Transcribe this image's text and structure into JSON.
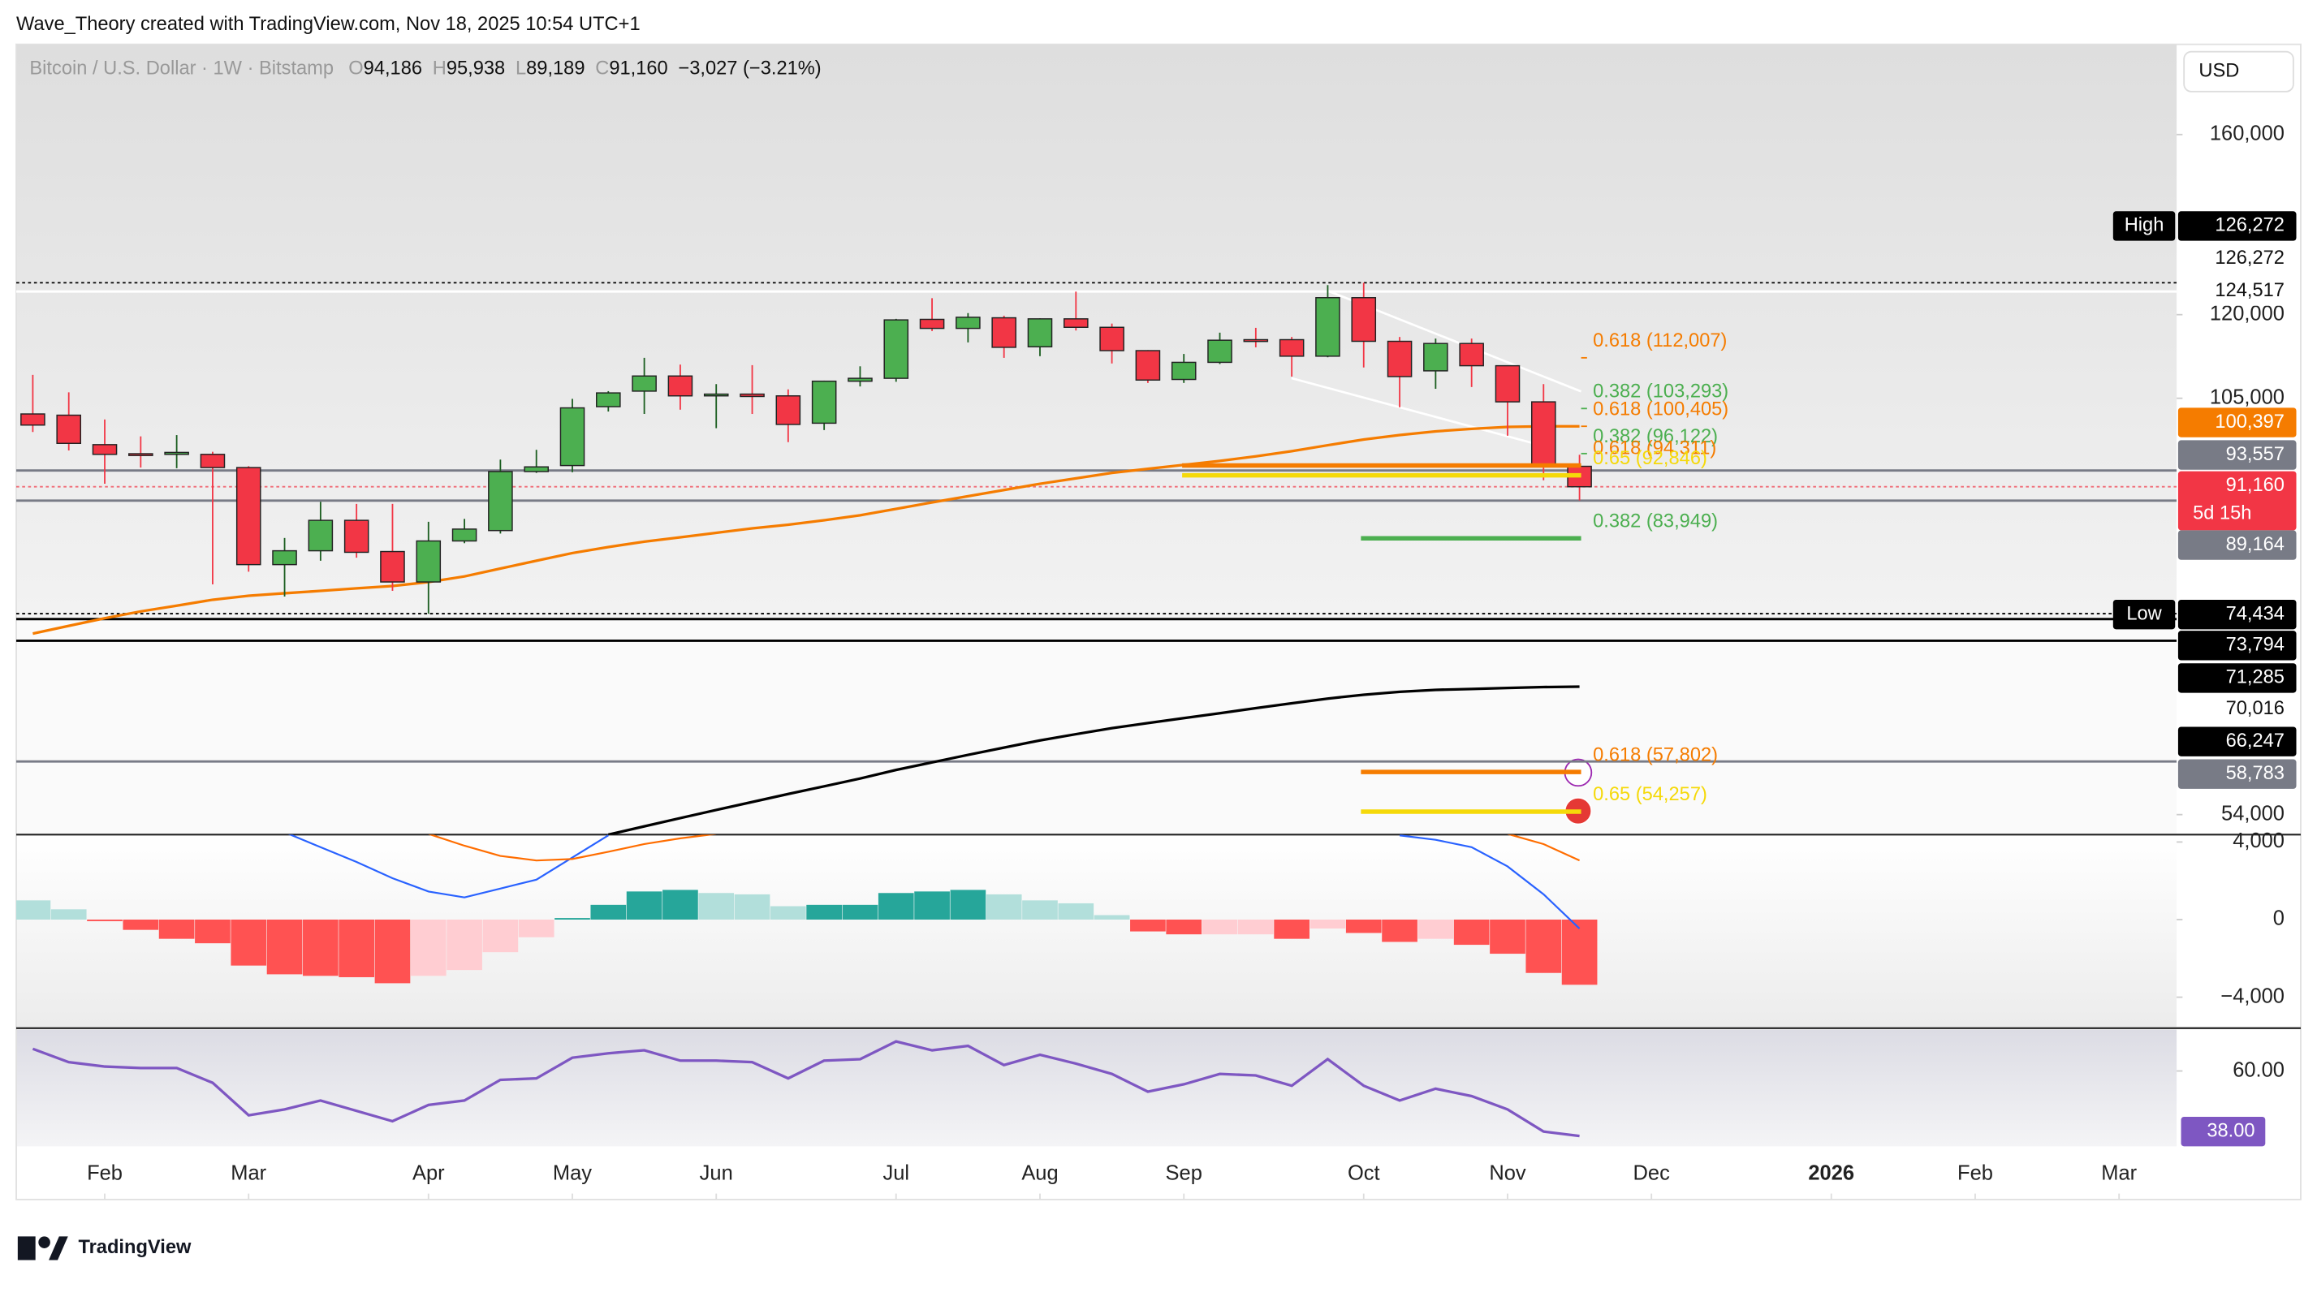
{
  "header": {
    "credit": "Wave_Theory created with TradingView.com, Nov 18, 2025 10:54 UTC+1"
  },
  "legend": {
    "symbol": "Bitcoin / U.S. Dollar · 1W · Bitstamp",
    "fields": [
      {
        "key": "O",
        "value": "94,186"
      },
      {
        "key": "H",
        "value": "95,938"
      },
      {
        "key": "L",
        "value": "89,189"
      },
      {
        "key": "C",
        "value": "91,160"
      }
    ],
    "change": "−3,027 (−3.21%)"
  },
  "currency": "USD",
  "footer": {
    "logo": "TradingView"
  },
  "chart_data": [
    {
      "type": "candlestick",
      "log_scale": true,
      "up_color": "#4caf50",
      "down_color": "#f23645",
      "open": [
        102400,
        102200,
        97500,
        96100,
        96000,
        96000,
        94000,
        80500,
        82300,
        86400,
        82200,
        78300,
        83600,
        85000,
        93400,
        94300,
        103600,
        106200,
        108800,
        105600,
        105700,
        105400,
        100900,
        107900,
        108400,
        119100,
        117400,
        119400,
        114000,
        119200,
        117600,
        113300,
        108200,
        111200,
        115300,
        115300,
        112300,
        123300,
        115000,
        109700,
        114600,
        110600,
        104400,
        94186
      ],
      "high": [
        109000,
        106000,
        101500,
        98800,
        99000,
        96400,
        94200,
        84000,
        89000,
        88700,
        88700,
        86200,
        86600,
        95200,
        96700,
        104900,
        106200,
        112000,
        110800,
        107400,
        110700,
        106500,
        108000,
        110500,
        119200,
        123200,
        120300,
        119800,
        119300,
        124500,
        118300,
        113400,
        112700,
        116600,
        117500,
        115800,
        125800,
        126272,
        115800,
        115500,
        115500,
        110600,
        107400,
        95938
      ],
      "low": [
        99500,
        96600,
        91600,
        94000,
        93900,
        78000,
        79600,
        76500,
        81000,
        81400,
        77200,
        74434,
        83300,
        84600,
        93200,
        93300,
        102800,
        102400,
        103100,
        100100,
        102400,
        97900,
        99800,
        107000,
        107800,
        116900,
        114800,
        112000,
        112300,
        117000,
        111000,
        107600,
        107600,
        110900,
        113900,
        108700,
        112100,
        110300,
        103500,
        106600,
        106900,
        98900,
        92100,
        89189
      ],
      "close": [
        100600,
        97700,
        96000,
        95900,
        96300,
        94000,
        80500,
        82300,
        86400,
        82100,
        78300,
        83600,
        85200,
        93400,
        94100,
        103400,
        105900,
        108800,
        105400,
        105700,
        105300,
        100700,
        107900,
        108400,
        119000,
        117400,
        119500,
        113900,
        119200,
        117600,
        113300,
        108100,
        111200,
        115200,
        115100,
        112300,
        123300,
        115000,
        108700,
        114600,
        110600,
        104400,
        94300,
        91160
      ],
      "series": [
        {
          "color": "#f57c00",
          "values": [
            72100,
            73000,
            73900,
            74700,
            75400,
            76100,
            76600,
            76900,
            77200,
            77500,
            77800,
            78300,
            79000,
            80000,
            81000,
            82000,
            82800,
            83500,
            84100,
            84700,
            85300,
            85800,
            86400,
            87100,
            88000,
            88900,
            89800,
            90700,
            91600,
            92400,
            93200,
            93800,
            94400,
            95000,
            95700,
            96500,
            97400,
            98300,
            99000,
            99600,
            100000,
            100300,
            100400,
            100397
          ]
        },
        {
          "color": "#000000",
          "values": [
            null,
            null,
            null,
            null,
            null,
            null,
            null,
            null,
            null,
            null,
            null,
            null,
            null,
            null,
            null,
            null,
            52300,
            53000,
            53700,
            54400,
            55100,
            55800,
            56500,
            57200,
            58000,
            58700,
            59400,
            60100,
            60800,
            61400,
            62000,
            62500,
            63000,
            63500,
            64000,
            64500,
            65000,
            65400,
            65700,
            65900,
            66000,
            66100,
            66200,
            66247
          ]
        }
      ],
      "ylim": [
        52300,
        184800
      ],
      "yticks": [
        {
          "value": 160000,
          "label": "160,000"
        },
        {
          "value": 120000,
          "label": "120,000"
        },
        {
          "value": 105000,
          "label": "105,000"
        },
        {
          "value": 54000,
          "label": "54,000"
        }
      ],
      "xlim": [
        -0.46,
        59.6
      ],
      "xticks": [
        {
          "value": 2,
          "label": "Feb"
        },
        {
          "value": 6,
          "label": "Mar"
        },
        {
          "value": 11,
          "label": "Apr"
        },
        {
          "value": 15,
          "label": "May"
        },
        {
          "value": 19,
          "label": "Jun"
        },
        {
          "value": 24,
          "label": "Jul"
        },
        {
          "value": 28,
          "label": "Aug"
        },
        {
          "value": 32,
          "label": "Sep"
        },
        {
          "value": 37,
          "label": "Oct"
        },
        {
          "value": 41,
          "label": "Nov"
        },
        {
          "value": 45,
          "label": "Dec"
        },
        {
          "value": 50,
          "label": "2026"
        },
        {
          "value": 54,
          "label": "Feb"
        },
        {
          "value": 58,
          "label": "Mar"
        }
      ],
      "price_labels": [
        {
          "tag": "High",
          "value": 126272,
          "label": "126,272",
          "color": "#000000",
          "line": "dotted"
        },
        {
          "value": 126272,
          "label": "126,272",
          "color": "#ffffff"
        },
        {
          "value": 124517,
          "label": "124,517",
          "color": "#ffffff",
          "line": "solid"
        },
        {
          "value": 100397,
          "label": "100,397",
          "color": "#f57c00"
        },
        {
          "value": 93557,
          "label": "93,557",
          "color": "#787b86",
          "line": "solid"
        },
        {
          "value": 91160,
          "label": "91,160",
          "sub": "5d 15h",
          "color": "#f23645",
          "line": "dotted"
        },
        {
          "value": 89164,
          "label": "89,164",
          "color": "#787b86",
          "line": "solid"
        },
        {
          "tag": "Low",
          "value": 74434,
          "label": "74,434",
          "color": "#000000",
          "line": "dotted"
        },
        {
          "value": 73794,
          "label": "73,794",
          "color": "#000000",
          "line": "solid"
        },
        {
          "value": 71285,
          "label": "71,285",
          "color": "#000000",
          "line": "solid"
        },
        {
          "value": 70016,
          "label": "70,016",
          "color": "#ffffff"
        },
        {
          "value": 66247,
          "label": "66,247",
          "color": "#000000"
        },
        {
          "value": 58783,
          "label": "58,783",
          "color": "#787b86",
          "line": "solid"
        }
      ],
      "fib_levels": [
        {
          "label": "0.618 (112,007)",
          "value": 112007,
          "color": "#f57c00"
        },
        {
          "label": "0.382 (103,293)",
          "value": 103293,
          "color": "#4caf50"
        },
        {
          "label": "0.618 (100,405)",
          "value": 100405,
          "color": "#f57c00"
        },
        {
          "label": "0.382 (96,122)",
          "value": 96122,
          "color": "#4caf50"
        },
        {
          "label": "0.618 (94,311)",
          "value": 94311,
          "color": "#f57c00",
          "line": true
        },
        {
          "label": "0.65 (92,846)",
          "value": 92846,
          "color": "#f5d90a",
          "line": true
        },
        {
          "label": "0.382 (83,949)",
          "value": 83949,
          "color": "#4caf50",
          "line": true
        },
        {
          "label": "0.618 (57,802)",
          "value": 57802,
          "color": "#f57c00",
          "line": true
        },
        {
          "label": "0.65 (54,257)",
          "value": 54257,
          "color": "#f5d90a",
          "line": true
        }
      ]
    },
    {
      "type": "bar",
      "values": [
        990,
        530,
        -80,
        -530,
        -990,
        -1220,
        -2370,
        -2820,
        -2900,
        -2970,
        -3280,
        -2900,
        -2600,
        -1680,
        -910,
        80,
        760,
        1450,
        1530,
        1370,
        1300,
        690,
        760,
        760,
        1370,
        1450,
        1530,
        1300,
        990,
        840,
        230,
        -610,
        -760,
        -760,
        -760,
        -990,
        -460,
        -690,
        -1150,
        -990,
        -1300,
        -1760,
        -2750,
        -3360
      ],
      "colors": [
        "#b2dfdb",
        "#b2dfdb",
        "#ff5252",
        "#ff5252",
        "#ff5252",
        "#ff5252",
        "#ff5252",
        "#ff5252",
        "#ff5252",
        "#ff5252",
        "#ff5252",
        "#ffcdd2",
        "#ffcdd2",
        "#ffcdd2",
        "#ffcdd2",
        "#26a69a",
        "#26a69a",
        "#26a69a",
        "#26a69a",
        "#b2dfdb",
        "#b2dfdb",
        "#b2dfdb",
        "#26a69a",
        "#26a69a",
        "#26a69a",
        "#26a69a",
        "#26a69a",
        "#b2dfdb",
        "#b2dfdb",
        "#b2dfdb",
        "#b2dfdb",
        "#ff5252",
        "#ff5252",
        "#ffcdd2",
        "#ffcdd2",
        "#ff5252",
        "#ffcdd2",
        "#ff5252",
        "#ff5252",
        "#ffcdd2",
        "#ff5252",
        "#ff5252",
        "#ff5252",
        "#ff5252"
      ],
      "series": [
        {
          "color": "#2962ff",
          "values": [
            null,
            null,
            null,
            null,
            null,
            null,
            null,
            4500,
            3730,
            2970,
            2130,
            1450,
            1140,
            1600,
            2060,
            3200,
            4340,
            null,
            null,
            null,
            null,
            null,
            null,
            null,
            null,
            null,
            null,
            null,
            null,
            null,
            null,
            null,
            null,
            null,
            null,
            null,
            null,
            null,
            4340,
            4110,
            3730,
            2740,
            1300,
            -460
          ]
        },
        {
          "color": "#ff6d00",
          "values": [
            null,
            null,
            null,
            null,
            null,
            null,
            null,
            null,
            null,
            null,
            null,
            4420,
            3810,
            3280,
            3050,
            3120,
            3500,
            3890,
            4190,
            4420,
            null,
            null,
            null,
            null,
            null,
            null,
            null,
            null,
            null,
            null,
            null,
            null,
            null,
            null,
            null,
            null,
            null,
            null,
            null,
            null,
            null,
            4420,
            3890,
            3050
          ]
        }
      ],
      "ylim": [
        -5520,
        4380
      ],
      "yticks": [
        {
          "value": 4000,
          "label": "4,000"
        },
        0,
        {
          "value": -4000,
          "label": "−4,000"
        }
      ]
    },
    {
      "type": "line",
      "color": "#7e57c2",
      "values": [
        67.5,
        63,
        61.5,
        61,
        61,
        56,
        45,
        47,
        50,
        46.5,
        43,
        48.5,
        50,
        57,
        57.5,
        64.5,
        66,
        67,
        63.5,
        63.5,
        63,
        57.5,
        63.5,
        64,
        70,
        67,
        68.5,
        62,
        65.5,
        62.5,
        59,
        53,
        55.5,
        59,
        58.5,
        55,
        64,
        55,
        50,
        54,
        51.5,
        47,
        39.5,
        38
      ],
      "end_label": {
        "value": 38,
        "label": "38.00"
      },
      "ylim": [
        34.5,
        74
      ],
      "yticks": [
        {
          "value": 60,
          "label": "60.00"
        }
      ]
    }
  ]
}
